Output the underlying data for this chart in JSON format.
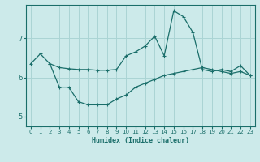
{
  "xlabel": "Humidex (Indice chaleur)",
  "bg_color": "#cceaea",
  "grid_color": "#aad4d4",
  "line_color": "#1a6e6a",
  "xlim": [
    -0.5,
    23.5
  ],
  "ylim": [
    4.75,
    7.85
  ],
  "yticks": [
    5,
    6,
    7
  ],
  "xticks": [
    0,
    1,
    2,
    3,
    4,
    5,
    6,
    7,
    8,
    9,
    10,
    11,
    12,
    13,
    14,
    15,
    16,
    17,
    18,
    19,
    20,
    21,
    22,
    23
  ],
  "series1_x": [
    0,
    1,
    2,
    3,
    4,
    5,
    6,
    7,
    8,
    9,
    10,
    11,
    12,
    13,
    14,
    15,
    16,
    17,
    18,
    19,
    20,
    21,
    22,
    23
  ],
  "series1_y": [
    6.35,
    6.6,
    6.35,
    6.25,
    6.22,
    6.2,
    6.2,
    6.18,
    6.18,
    6.2,
    6.55,
    6.65,
    6.8,
    7.05,
    6.55,
    7.7,
    7.55,
    7.15,
    6.2,
    6.15,
    6.2,
    6.15,
    6.3,
    6.05
  ],
  "series2_x": [
    2,
    3,
    4,
    5,
    6,
    7,
    8,
    9,
    10,
    11,
    12,
    13,
    14,
    15,
    16,
    17,
    18,
    19,
    20,
    21,
    22,
    23
  ],
  "series2_y": [
    6.35,
    5.75,
    5.75,
    5.38,
    5.3,
    5.3,
    5.3,
    5.45,
    5.55,
    5.75,
    5.85,
    5.95,
    6.05,
    6.1,
    6.15,
    6.2,
    6.25,
    6.2,
    6.15,
    6.1,
    6.15,
    6.05
  ]
}
